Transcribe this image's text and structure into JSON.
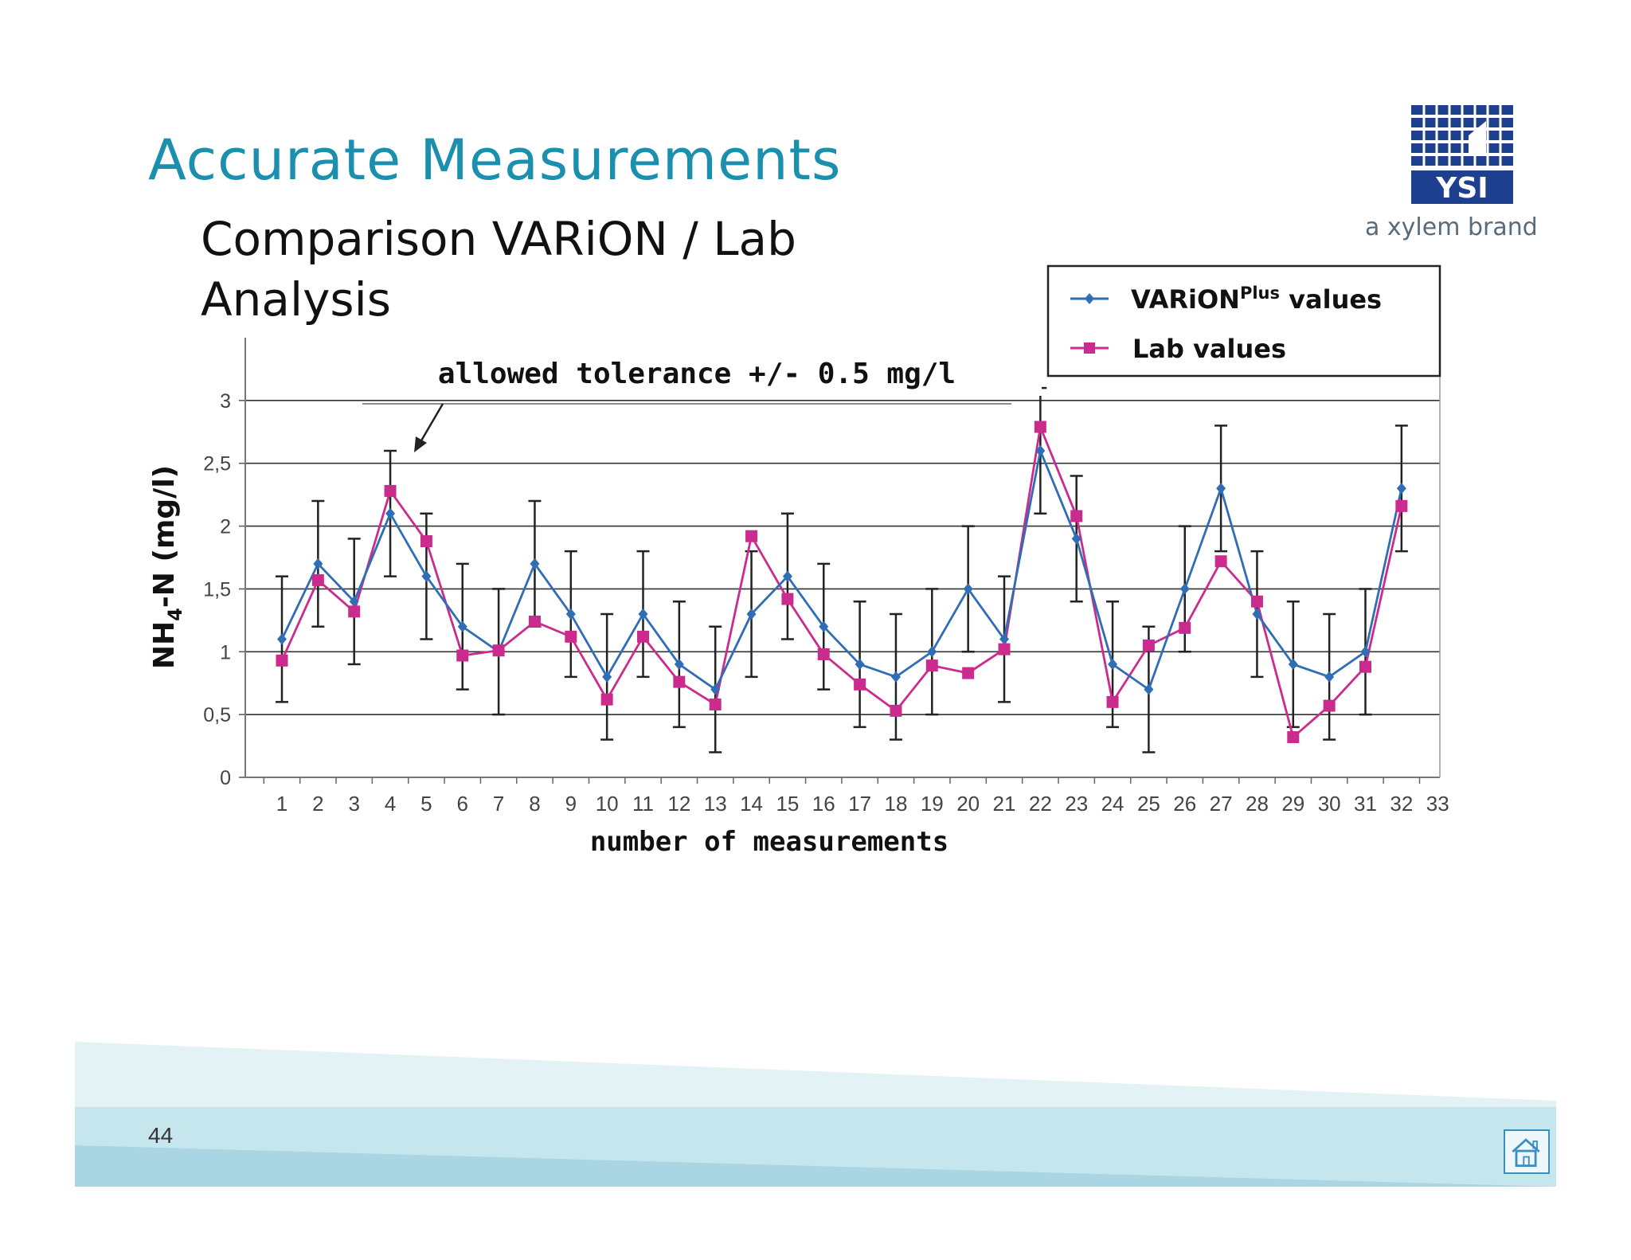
{
  "slide": {
    "title": "Accurate Measurements",
    "subtitle": "Comparison VARiON / Lab Analysis",
    "page_number": "44",
    "brand": {
      "logo_text": "YSI",
      "tagline": "a xylem brand"
    },
    "colors": {
      "title": "#1a8fae",
      "varion": "#2f6db5",
      "lab": "#cc2b8e",
      "band": "#c6e6ee"
    }
  },
  "chart_data": {
    "type": "line",
    "ylabel": "NH4-N (mg/l)",
    "ylabel_main": "NH",
    "ylabel_sub": "4",
    "ylabel_rest": "-N (mg/l)",
    "xlabel": "number of measurements",
    "annotation": "allowed tolerance +/- 0.5 mg/l",
    "x": [
      1,
      2,
      3,
      4,
      5,
      6,
      7,
      8,
      9,
      10,
      11,
      12,
      13,
      14,
      15,
      16,
      17,
      18,
      19,
      20,
      21,
      22,
      23,
      24,
      25,
      26,
      27,
      28,
      29,
      30,
      31,
      32,
      33
    ],
    "ylim": [
      0,
      3.5
    ],
    "yticks": [
      0,
      0.5,
      1,
      1.5,
      2,
      2.5,
      3
    ],
    "ytick_labels": [
      "0",
      "0,5",
      "1",
      "1,5",
      "2",
      "2,5",
      "3"
    ],
    "grid": true,
    "legend": {
      "placement": "top-right"
    },
    "series": [
      {
        "name": "VARiONPlus values",
        "name_main": "VARiON",
        "name_sup": "Plus",
        "name_rest": " values",
        "color": "#2f6db5",
        "marker": "diamond",
        "x": [
          1,
          2,
          3,
          4,
          5,
          6,
          7,
          8,
          9,
          10,
          11,
          12,
          13,
          14,
          15,
          16,
          17,
          18,
          19,
          20,
          21,
          22,
          23,
          24,
          25,
          26,
          27,
          28,
          29,
          30,
          31,
          32
        ],
        "values": [
          1.1,
          1.7,
          1.4,
          2.1,
          1.6,
          1.2,
          1.0,
          1.7,
          1.3,
          0.8,
          1.3,
          0.9,
          0.7,
          1.3,
          1.6,
          1.2,
          0.9,
          0.8,
          1.0,
          1.5,
          1.1,
          2.6,
          1.9,
          0.9,
          0.7,
          1.5,
          2.3,
          1.3,
          0.9,
          0.8,
          1.0,
          2.3
        ],
        "error": 0.5
      },
      {
        "name": "Lab values",
        "color": "#cc2b8e",
        "marker": "square",
        "x": [
          1,
          2,
          3,
          4,
          5,
          6,
          7,
          8,
          9,
          10,
          11,
          12,
          13,
          14,
          15,
          16,
          17,
          18,
          19,
          20,
          21,
          22,
          23,
          24,
          25,
          26,
          27,
          28,
          29,
          30,
          31,
          32
        ],
        "values": [
          0.93,
          1.57,
          1.32,
          2.28,
          1.88,
          0.97,
          1.01,
          1.24,
          1.12,
          0.62,
          1.12,
          0.76,
          0.58,
          1.92,
          1.42,
          0.98,
          0.74,
          0.53,
          0.89,
          0.83,
          1.02,
          2.79,
          2.08,
          0.6,
          1.05,
          1.19,
          1.72,
          1.4,
          0.32,
          0.57,
          0.88,
          2.16
        ]
      }
    ]
  }
}
